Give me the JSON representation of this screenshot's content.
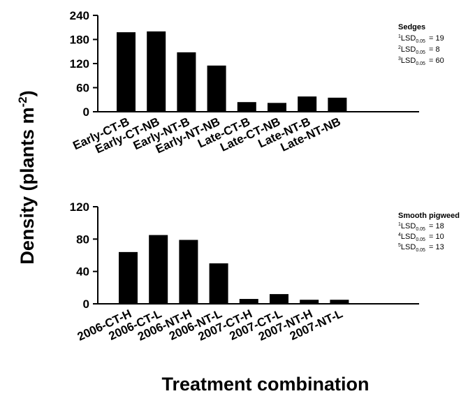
{
  "y_axis_label": "Density (plants m",
  "y_axis_label_sup": "-2",
  "y_axis_label_end": ")",
  "x_axis_label": "Treatment combination",
  "chart_data": [
    {
      "type": "bar",
      "panel": "top",
      "categories": [
        "Early-CT-B",
        "Early-CT-NB",
        "Early-NT-B",
        "Early-NT-NB",
        "Late-CT-B",
        "Late-CT-NB",
        "Late-NT-B",
        "Late-NT-NB"
      ],
      "values": [
        198,
        200,
        148,
        115,
        24,
        22,
        38,
        35
      ],
      "ylim": [
        0,
        240
      ],
      "yticks": [
        0,
        60,
        120,
        180,
        240
      ],
      "legend_title": "Sedges",
      "annotations": [
        {
          "sup": "1",
          "text": "LSD",
          "sub": "0.05",
          "value": "= 19"
        },
        {
          "sup": "2",
          "text": "LSD",
          "sub": "0.05",
          "value": "=   8"
        },
        {
          "sup": "3",
          "text": "LSD",
          "sub": "0.05",
          "value": "= 60"
        }
      ],
      "annotation_placement": "top-right",
      "grid": false,
      "bar_color": "#000000"
    },
    {
      "type": "bar",
      "panel": "bottom",
      "categories": [
        "2006-CT-H",
        "2006-CT-L",
        "2006-NT-H",
        "2006-NT-L",
        "2007-CT-H",
        "2007-CT-L",
        "2007-NT-H",
        "2007-NT-L"
      ],
      "values": [
        64,
        85,
        79,
        50,
        6,
        12,
        5,
        5
      ],
      "ylim": [
        0,
        120
      ],
      "yticks": [
        0,
        40,
        80,
        120
      ],
      "legend_title": "Smooth pigweed",
      "annotations": [
        {
          "sup": "1",
          "text": "LSD",
          "sub": "0.05",
          "value": "= 18"
        },
        {
          "sup": "4",
          "text": "LSD",
          "sub": "0.05",
          "value": "= 10"
        },
        {
          "sup": "5",
          "text": "LSD",
          "sub": "0.05",
          "value": "= 13"
        }
      ],
      "annotation_placement": "top-right",
      "grid": false,
      "bar_color": "#000000"
    }
  ]
}
